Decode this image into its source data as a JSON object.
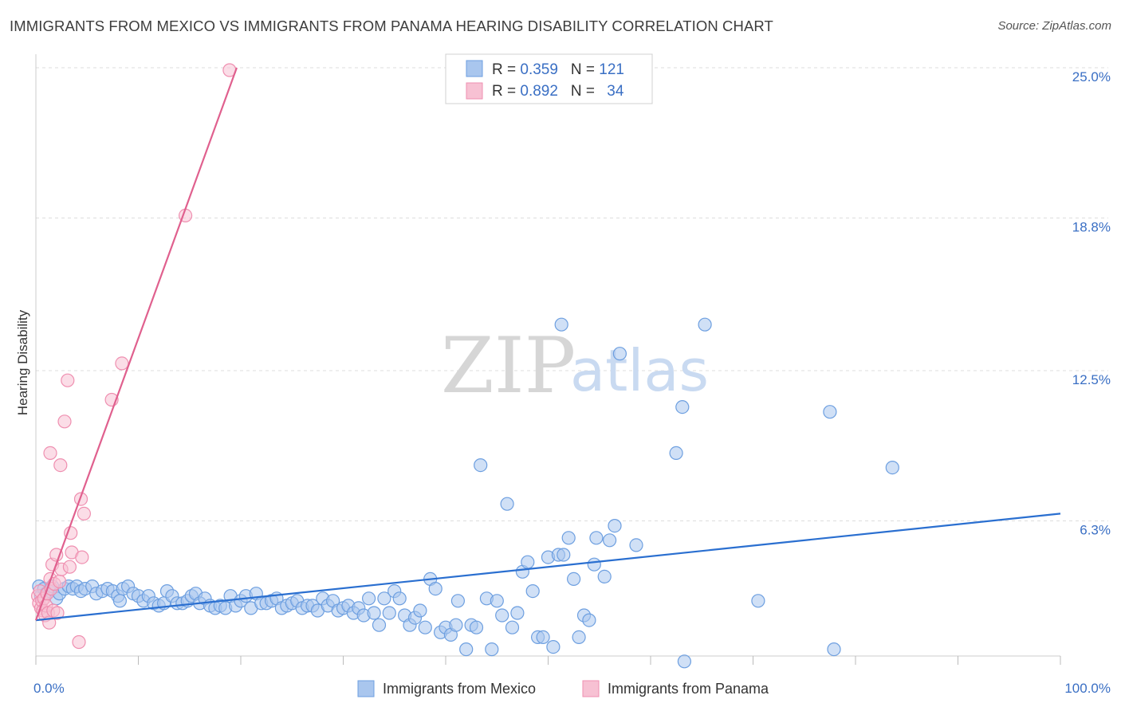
{
  "header": {
    "title": "IMMIGRANTS FROM MEXICO VS IMMIGRANTS FROM PANAMA HEARING DISABILITY CORRELATION CHART",
    "source": "Source: ZipAtlas.com"
  },
  "watermark": {
    "zip": "ZIP",
    "atlas": "atlas"
  },
  "chart_data": {
    "type": "scatter",
    "title": "IMMIGRANTS FROM MEXICO VS IMMIGRANTS FROM PANAMA HEARING DISABILITY CORRELATION CHART",
    "xlabel": "",
    "ylabel": "Hearing Disability",
    "xlim": [
      0,
      100
    ],
    "ylim": [
      0,
      25.0
    ],
    "x_tick_labels": {
      "left": "0.0%",
      "right": "100.0%"
    },
    "y_ticks": [
      {
        "value": 6.3,
        "label": "6.3%"
      },
      {
        "value": 12.5,
        "label": "12.5%"
      },
      {
        "value": 18.8,
        "label": "18.8%"
      },
      {
        "value": 25.0,
        "label": "25.0%"
      }
    ],
    "legend": {
      "placement": "top-center",
      "entries": [
        {
          "r_label": "R = ",
          "r_value": "0.359",
          "n_label": "N = ",
          "n_value": "121",
          "series": "Immigrants from Mexico"
        },
        {
          "r_label": "R = ",
          "r_value": "0.892",
          "n_label": "N = ",
          "n_value": "34",
          "series": "Immigrants from Panama"
        }
      ]
    },
    "series": [
      {
        "name": "Immigrants from Mexico",
        "color": "#6d9fe0",
        "fill": "#a9c6ee",
        "line_color": "#2a6fd0",
        "trend": {
          "x": [
            0,
            100
          ],
          "y": [
            2.2,
            6.6
          ]
        },
        "points": [
          [
            0.3,
            3.6
          ],
          [
            0.5,
            3.2
          ],
          [
            0.8,
            3.5
          ],
          [
            1.0,
            3.3
          ],
          [
            1.3,
            3.4
          ],
          [
            1.6,
            3.6
          ],
          [
            2.0,
            3.1
          ],
          [
            2.3,
            3.3
          ],
          [
            2.8,
            3.5
          ],
          [
            3.2,
            3.6
          ],
          [
            3.6,
            3.5
          ],
          [
            4.0,
            3.6
          ],
          [
            4.4,
            3.4
          ],
          [
            4.8,
            3.5
          ],
          [
            5.5,
            3.6
          ],
          [
            5.9,
            3.3
          ],
          [
            6.5,
            3.4
          ],
          [
            7.0,
            3.5
          ],
          [
            7.5,
            3.4
          ],
          [
            8.0,
            3.2
          ],
          [
            8.5,
            3.5
          ],
          [
            8.2,
            3.0
          ],
          [
            9.0,
            3.6
          ],
          [
            9.5,
            3.3
          ],
          [
            10.0,
            3.2
          ],
          [
            10.5,
            3.0
          ],
          [
            11.0,
            3.2
          ],
          [
            11.5,
            2.9
          ],
          [
            12.0,
            2.8
          ],
          [
            12.5,
            2.9
          ],
          [
            12.8,
            3.4
          ],
          [
            13.3,
            3.2
          ],
          [
            13.8,
            2.9
          ],
          [
            14.3,
            2.9
          ],
          [
            14.8,
            3.0
          ],
          [
            15.2,
            3.2
          ],
          [
            15.6,
            3.3
          ],
          [
            16.0,
            2.9
          ],
          [
            16.5,
            3.1
          ],
          [
            17.0,
            2.8
          ],
          [
            17.5,
            2.7
          ],
          [
            18.0,
            2.8
          ],
          [
            18.5,
            2.7
          ],
          [
            19.0,
            3.2
          ],
          [
            19.5,
            2.8
          ],
          [
            20.0,
            3.0
          ],
          [
            20.5,
            3.2
          ],
          [
            21.0,
            2.7
          ],
          [
            21.5,
            3.3
          ],
          [
            22.0,
            2.9
          ],
          [
            22.5,
            2.9
          ],
          [
            23.0,
            3.0
          ],
          [
            23.5,
            3.1
          ],
          [
            24.0,
            2.7
          ],
          [
            24.5,
            2.8
          ],
          [
            25.0,
            2.9
          ],
          [
            25.5,
            3.0
          ],
          [
            26.0,
            2.7
          ],
          [
            26.5,
            2.8
          ],
          [
            27.0,
            2.8
          ],
          [
            27.5,
            2.6
          ],
          [
            28.0,
            3.1
          ],
          [
            28.5,
            2.8
          ],
          [
            29.0,
            3.0
          ],
          [
            29.5,
            2.6
          ],
          [
            30.0,
            2.7
          ],
          [
            30.5,
            2.8
          ],
          [
            31.0,
            2.5
          ],
          [
            31.5,
            2.7
          ],
          [
            32.0,
            2.4
          ],
          [
            32.5,
            3.1
          ],
          [
            33.0,
            2.5
          ],
          [
            33.5,
            2.0
          ],
          [
            34.0,
            3.1
          ],
          [
            34.5,
            2.5
          ],
          [
            35.0,
            3.4
          ],
          [
            35.5,
            3.1
          ],
          [
            36.0,
            2.4
          ],
          [
            36.5,
            2.0
          ],
          [
            37.0,
            2.3
          ],
          [
            37.5,
            2.6
          ],
          [
            38.0,
            1.9
          ],
          [
            38.5,
            3.9
          ],
          [
            39.0,
            3.5
          ],
          [
            39.5,
            1.7
          ],
          [
            40.0,
            1.9
          ],
          [
            40.5,
            1.6
          ],
          [
            41.0,
            2.0
          ],
          [
            41.2,
            3.0
          ],
          [
            42.0,
            1.0
          ],
          [
            42.5,
            2.0
          ],
          [
            43.0,
            1.9
          ],
          [
            43.4,
            8.6
          ],
          [
            44.0,
            3.1
          ],
          [
            44.5,
            1.0
          ],
          [
            45.0,
            3.0
          ],
          [
            45.5,
            2.4
          ],
          [
            46.0,
            7.0
          ],
          [
            46.5,
            1.9
          ],
          [
            47.0,
            2.5
          ],
          [
            47.5,
            4.2
          ],
          [
            48.0,
            4.6
          ],
          [
            48.5,
            3.4
          ],
          [
            49.0,
            1.5
          ],
          [
            49.5,
            1.5
          ],
          [
            50.0,
            4.8
          ],
          [
            50.5,
            1.1
          ],
          [
            51.0,
            4.9
          ],
          [
            51.5,
            4.9
          ],
          [
            52.0,
            5.6
          ],
          [
            52.5,
            3.9
          ],
          [
            53.0,
            1.5
          ],
          [
            53.5,
            2.4
          ],
          [
            54.0,
            2.2
          ],
          [
            54.5,
            4.5
          ],
          [
            54.7,
            5.6
          ],
          [
            55.5,
            4.0
          ],
          [
            56.0,
            5.5
          ],
          [
            56.5,
            6.1
          ],
          [
            57.0,
            13.2
          ],
          [
            58.6,
            5.3
          ],
          [
            62.5,
            9.1
          ],
          [
            63.1,
            11.0
          ],
          [
            63.3,
            0.5
          ],
          [
            65.3,
            14.4
          ],
          [
            70.5,
            3.0
          ],
          [
            77.5,
            10.8
          ],
          [
            77.9,
            1.0
          ],
          [
            83.6,
            8.5
          ],
          [
            51.3,
            14.4
          ]
        ]
      },
      {
        "name": "Immigrants from Panama",
        "color": "#ef8fb0",
        "fill": "#f7c1d3",
        "line_color": "#e0608e",
        "trend": {
          "x": [
            0,
            19.6
          ],
          "y": [
            2.2,
            25.0
          ]
        },
        "points": [
          [
            0.2,
            3.2
          ],
          [
            0.3,
            2.9
          ],
          [
            0.4,
            3.4
          ],
          [
            0.5,
            2.7
          ],
          [
            0.6,
            3.0
          ],
          [
            0.7,
            2.6
          ],
          [
            0.8,
            3.1
          ],
          [
            0.9,
            2.4
          ],
          [
            1.0,
            2.8
          ],
          [
            1.1,
            3.3
          ],
          [
            1.2,
            2.5
          ],
          [
            1.3,
            2.1
          ],
          [
            1.4,
            3.9
          ],
          [
            1.5,
            3.5
          ],
          [
            1.6,
            4.5
          ],
          [
            1.7,
            2.6
          ],
          [
            1.8,
            3.7
          ],
          [
            2.0,
            4.9
          ],
          [
            2.1,
            2.5
          ],
          [
            2.3,
            3.8
          ],
          [
            2.4,
            8.6
          ],
          [
            2.5,
            4.3
          ],
          [
            2.8,
            10.4
          ],
          [
            3.1,
            12.1
          ],
          [
            3.3,
            4.4
          ],
          [
            3.4,
            5.8
          ],
          [
            3.5,
            5.0
          ],
          [
            1.4,
            9.1
          ],
          [
            4.2,
            1.3
          ],
          [
            4.4,
            7.2
          ],
          [
            4.5,
            4.8
          ],
          [
            4.7,
            6.6
          ],
          [
            7.4,
            11.3
          ],
          [
            8.4,
            12.8
          ],
          [
            14.6,
            18.9
          ],
          [
            18.9,
            24.9
          ]
        ]
      }
    ]
  }
}
